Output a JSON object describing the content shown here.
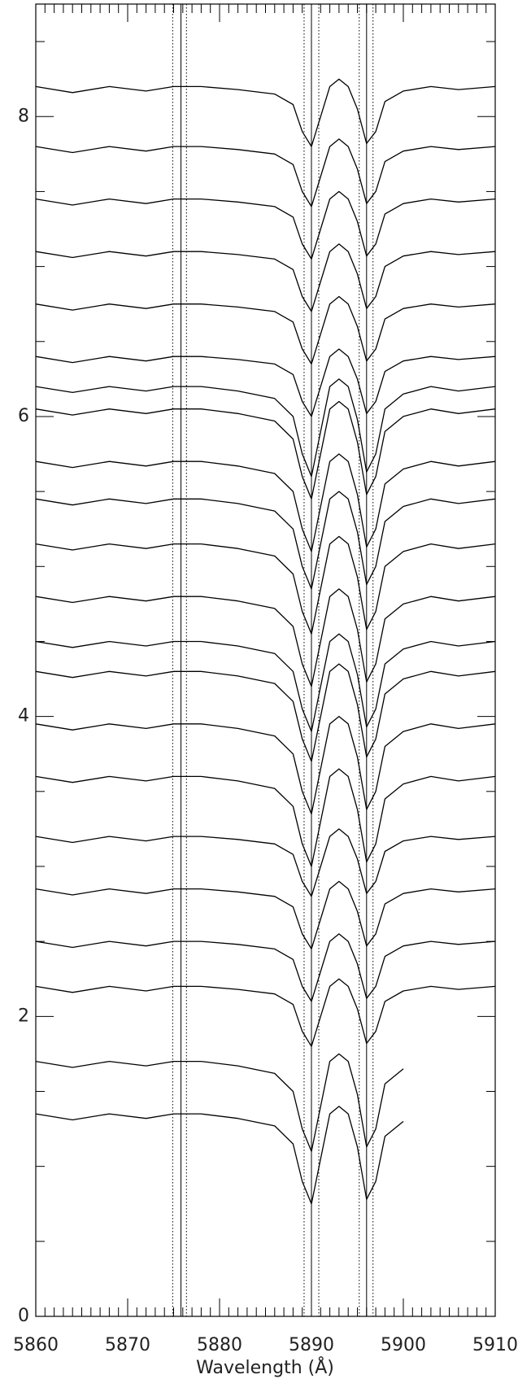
{
  "chart_data": {
    "type": "line",
    "xlabel": "Wavelength (Å)",
    "xlim": [
      5860,
      5910
    ],
    "ylim": [
      0,
      8.75
    ],
    "xticks": [
      5860,
      5870,
      5880,
      5890,
      5900,
      5910
    ],
    "yticks": [
      0,
      2,
      4,
      6,
      8
    ],
    "xminor_ticks": [
      5861,
      5862,
      5863,
      5864,
      5865,
      5866,
      5867,
      5868,
      5869,
      5871,
      5872,
      5873,
      5874,
      5875,
      5876,
      5877,
      5878,
      5879,
      5881,
      5882,
      5883,
      5884,
      5885,
      5886,
      5887,
      5888,
      5889,
      5891,
      5892,
      5893,
      5894,
      5895,
      5896,
      5897,
      5898,
      5899,
      5901,
      5902,
      5903,
      5904,
      5905,
      5906,
      5907,
      5908,
      5909
    ],
    "yminor_ticks": [
      0.5,
      1,
      1.5,
      2.5,
      3,
      3.5,
      4.5,
      5,
      5.5,
      6.5,
      7,
      7.5,
      8.5
    ],
    "vlines": [
      {
        "x": 5874.9,
        "style": "dotted"
      },
      {
        "x": 5875.8,
        "style": "solid"
      },
      {
        "x": 5876.4,
        "style": "dotted"
      },
      {
        "x": 5889.2,
        "style": "dotted"
      },
      {
        "x": 5890.0,
        "style": "solid"
      },
      {
        "x": 5890.8,
        "style": "dotted"
      },
      {
        "x": 5895.2,
        "style": "dotted"
      },
      {
        "x": 5896.0,
        "style": "solid"
      },
      {
        "x": 5896.7,
        "style": "dotted"
      }
    ],
    "x": [
      5860,
      5864,
      5868,
      5872,
      5875,
      5878,
      5882,
      5886,
      5888,
      5889,
      5890,
      5891,
      5892,
      5893,
      5894,
      5895,
      5896,
      5897,
      5898,
      5900,
      5903,
      5906,
      5910
    ],
    "series": [
      {
        "color": "#000000",
        "values": [
          8.2,
          8.16,
          8.2,
          8.17,
          8.2,
          8.2,
          8.18,
          8.15,
          8.08,
          7.9,
          7.8,
          8.0,
          8.2,
          8.25,
          8.2,
          8.05,
          7.82,
          7.9,
          8.1,
          8.17,
          8.2,
          8.18,
          8.2
        ]
      },
      {
        "color": "#000000",
        "values": [
          7.8,
          7.76,
          7.8,
          7.77,
          7.8,
          7.8,
          7.78,
          7.75,
          7.68,
          7.5,
          7.4,
          7.6,
          7.8,
          7.85,
          7.8,
          7.65,
          7.42,
          7.5,
          7.7,
          7.77,
          7.8,
          7.78,
          7.8
        ]
      },
      {
        "color": "#000000",
        "values": [
          7.45,
          7.41,
          7.45,
          7.42,
          7.45,
          7.45,
          7.43,
          7.4,
          7.33,
          7.15,
          7.05,
          7.25,
          7.45,
          7.5,
          7.45,
          7.3,
          7.07,
          7.15,
          7.35,
          7.42,
          7.45,
          7.43,
          7.45
        ]
      },
      {
        "color": "#000000",
        "values": [
          7.1,
          7.06,
          7.1,
          7.07,
          7.1,
          7.1,
          7.08,
          7.05,
          6.98,
          6.8,
          6.7,
          6.9,
          7.1,
          7.15,
          7.1,
          6.95,
          6.72,
          6.8,
          7.0,
          7.07,
          7.1,
          7.08,
          7.1
        ]
      },
      {
        "color": "#000000",
        "values": [
          6.75,
          6.71,
          6.75,
          6.72,
          6.75,
          6.75,
          6.73,
          6.7,
          6.63,
          6.45,
          6.35,
          6.55,
          6.75,
          6.8,
          6.75,
          6.6,
          6.37,
          6.45,
          6.65,
          6.72,
          6.75,
          6.73,
          6.75
        ]
      },
      {
        "color": "#000000",
        "values": [
          6.4,
          6.36,
          6.4,
          6.37,
          6.4,
          6.4,
          6.38,
          6.35,
          6.28,
          6.1,
          6.0,
          6.2,
          6.4,
          6.45,
          6.4,
          6.25,
          6.02,
          6.1,
          6.3,
          6.37,
          6.4,
          6.38,
          6.4
        ]
      },
      {
        "color": "#000000",
        "values": [
          6.2,
          6.16,
          6.2,
          6.17,
          6.2,
          6.2,
          6.17,
          6.12,
          6.0,
          5.75,
          5.6,
          5.9,
          6.2,
          6.25,
          6.2,
          5.98,
          5.63,
          5.75,
          6.05,
          6.15,
          6.2,
          6.17,
          6.2
        ]
      },
      {
        "color": "#000000",
        "values": [
          6.05,
          6.01,
          6.05,
          6.02,
          6.05,
          6.05,
          6.02,
          5.97,
          5.85,
          5.6,
          5.45,
          5.75,
          6.05,
          6.1,
          6.05,
          5.83,
          5.48,
          5.6,
          5.9,
          6.0,
          6.05,
          6.02,
          6.05
        ]
      },
      {
        "color": "#000000",
        "values": [
          5.7,
          5.66,
          5.7,
          5.67,
          5.7,
          5.7,
          5.67,
          5.62,
          5.5,
          5.25,
          5.1,
          5.4,
          5.7,
          5.75,
          5.7,
          5.48,
          5.13,
          5.25,
          5.55,
          5.65,
          5.7,
          5.67,
          5.7
        ]
      },
      {
        "color": "#000000",
        "values": [
          5.45,
          5.41,
          5.45,
          5.42,
          5.45,
          5.45,
          5.42,
          5.37,
          5.25,
          5.0,
          4.85,
          5.15,
          5.45,
          5.5,
          5.45,
          5.23,
          4.88,
          5.0,
          5.3,
          5.4,
          5.45,
          5.42,
          5.45
        ]
      },
      {
        "color": "#000000",
        "values": [
          5.15,
          5.11,
          5.15,
          5.12,
          5.15,
          5.15,
          5.12,
          5.07,
          4.95,
          4.7,
          4.55,
          4.85,
          5.15,
          5.2,
          5.15,
          4.93,
          4.58,
          4.7,
          5.0,
          5.1,
          5.15,
          5.12,
          5.15
        ]
      },
      {
        "color": "#000000",
        "values": [
          4.8,
          4.76,
          4.8,
          4.77,
          4.8,
          4.8,
          4.77,
          4.72,
          4.6,
          4.35,
          4.2,
          4.5,
          4.8,
          4.85,
          4.8,
          4.58,
          4.23,
          4.35,
          4.65,
          4.75,
          4.8,
          4.77,
          4.8
        ]
      },
      {
        "color": "#000000",
        "values": [
          4.5,
          4.46,
          4.5,
          4.47,
          4.5,
          4.5,
          4.47,
          4.42,
          4.3,
          4.05,
          3.9,
          4.2,
          4.5,
          4.55,
          4.5,
          4.28,
          3.93,
          4.05,
          4.35,
          4.45,
          4.5,
          4.47,
          4.5
        ]
      },
      {
        "color": "#000000",
        "values": [
          4.3,
          4.26,
          4.3,
          4.27,
          4.3,
          4.3,
          4.27,
          4.22,
          4.1,
          3.85,
          3.7,
          4.0,
          4.3,
          4.35,
          4.3,
          4.08,
          3.73,
          3.85,
          4.15,
          4.25,
          4.3,
          4.27,
          4.3
        ]
      },
      {
        "color": "#000000",
        "values": [
          3.95,
          3.91,
          3.95,
          3.92,
          3.95,
          3.95,
          3.92,
          3.87,
          3.75,
          3.5,
          3.35,
          3.65,
          3.95,
          4.0,
          3.95,
          3.73,
          3.38,
          3.5,
          3.8,
          3.9,
          3.95,
          3.92,
          3.95
        ]
      },
      {
        "color": "#000000",
        "values": [
          3.6,
          3.56,
          3.6,
          3.57,
          3.6,
          3.6,
          3.57,
          3.52,
          3.4,
          3.15,
          3.0,
          3.3,
          3.6,
          3.65,
          3.6,
          3.38,
          3.03,
          3.15,
          3.45,
          3.55,
          3.6,
          3.57,
          3.6
        ]
      },
      {
        "color": "#000000",
        "values": [
          3.2,
          3.16,
          3.2,
          3.17,
          3.2,
          3.2,
          3.18,
          3.15,
          3.08,
          2.9,
          2.8,
          3.0,
          3.2,
          3.25,
          3.2,
          3.05,
          2.82,
          2.9,
          3.1,
          3.17,
          3.2,
          3.18,
          3.2
        ]
      },
      {
        "color": "#000000",
        "values": [
          2.85,
          2.81,
          2.85,
          2.82,
          2.85,
          2.85,
          2.83,
          2.8,
          2.73,
          2.55,
          2.45,
          2.65,
          2.85,
          2.9,
          2.85,
          2.7,
          2.47,
          2.55,
          2.75,
          2.82,
          2.85,
          2.83,
          2.85
        ]
      },
      {
        "color": "#000000",
        "values": [
          2.5,
          2.46,
          2.5,
          2.47,
          2.5,
          2.5,
          2.48,
          2.45,
          2.38,
          2.2,
          2.1,
          2.3,
          2.5,
          2.55,
          2.5,
          2.35,
          2.12,
          2.2,
          2.4,
          2.47,
          2.5,
          2.48,
          2.5
        ]
      },
      {
        "color": "#000000",
        "values": [
          2.2,
          2.16,
          2.2,
          2.17,
          2.2,
          2.2,
          2.18,
          2.15,
          2.08,
          1.9,
          1.8,
          2.0,
          2.2,
          2.25,
          2.2,
          2.05,
          1.82,
          1.9,
          2.1,
          2.17,
          2.2,
          2.18,
          2.2
        ]
      },
      {
        "color": "#000000",
        "values": [
          1.7,
          1.66,
          1.7,
          1.67,
          1.7,
          1.7,
          1.67,
          1.62,
          1.5,
          1.25,
          1.1,
          1.4,
          1.7,
          1.75,
          1.7,
          1.48,
          1.13,
          1.25,
          1.55,
          1.65,
          null,
          null,
          null
        ]
      },
      {
        "color": "#000000",
        "values": [
          1.35,
          1.31,
          1.35,
          1.32,
          1.35,
          1.35,
          1.32,
          1.27,
          1.15,
          0.9,
          0.75,
          1.05,
          1.35,
          1.4,
          1.35,
          1.13,
          0.78,
          0.9,
          1.2,
          1.3,
          null,
          null,
          null
        ]
      }
    ]
  }
}
